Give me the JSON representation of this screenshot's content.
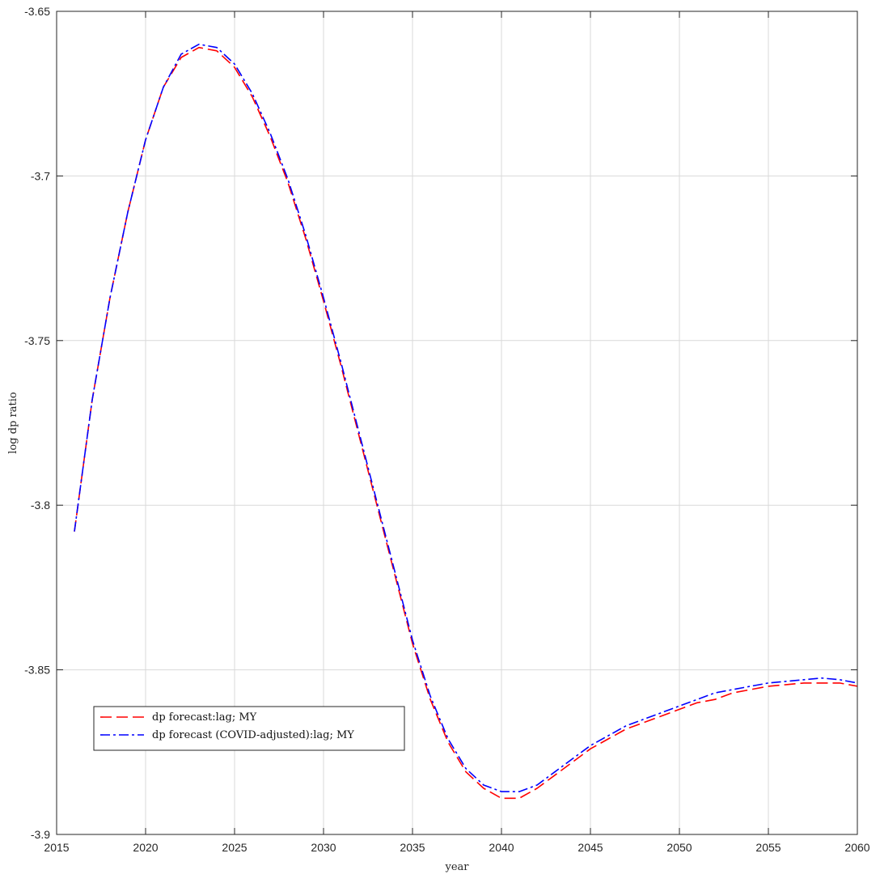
{
  "chart_data": {
    "type": "line",
    "xlabel": "year",
    "ylabel": "log dp ratio",
    "xlim": [
      2015,
      2060
    ],
    "ylim": [
      -3.9,
      -3.65
    ],
    "xticks": [
      2015,
      2020,
      2025,
      2030,
      2035,
      2040,
      2045,
      2050,
      2055,
      2060
    ],
    "yticks": [
      -3.65,
      -3.7,
      -3.75,
      -3.8,
      -3.85,
      -3.9
    ],
    "ytick_labels": [
      "-3.65",
      "-3.7",
      "-3.75",
      "-3.8",
      "-3.85",
      "-3.9"
    ],
    "grid": true,
    "legend_position": "bottom-left",
    "x": [
      2016,
      2017,
      2018,
      2019,
      2020,
      2021,
      2022,
      2023,
      2024,
      2025,
      2026,
      2027,
      2028,
      2029,
      2030,
      2031,
      2032,
      2033,
      2034,
      2035,
      2036,
      2037,
      2038,
      2039,
      2040,
      2041,
      2042,
      2043,
      2044,
      2045,
      2046,
      2047,
      2048,
      2049,
      2050,
      2051,
      2052,
      2053,
      2054,
      2055,
      2056,
      2057,
      2058,
      2059,
      2060
    ],
    "series": [
      {
        "name": "dp forecast:lag; MY",
        "color": "#ff0000",
        "dash": "dashed",
        "values": [
          -3.808,
          -3.768,
          -3.737,
          -3.711,
          -3.689,
          -3.673,
          -3.664,
          -3.661,
          -3.662,
          -3.667,
          -3.676,
          -3.688,
          -3.702,
          -3.719,
          -3.738,
          -3.758,
          -3.779,
          -3.8,
          -3.821,
          -3.842,
          -3.859,
          -3.872,
          -3.881,
          -3.886,
          -3.889,
          -3.889,
          -3.886,
          -3.882,
          -3.878,
          -3.874,
          -3.871,
          -3.868,
          -3.866,
          -3.864,
          -3.862,
          -3.86,
          -3.859,
          -3.857,
          -3.856,
          -3.855,
          -3.8545,
          -3.854,
          -3.854,
          -3.854,
          -3.855
        ]
      },
      {
        "name": "dp forecast (COVID-adjusted):lag; MY",
        "color": "#0000ff",
        "dash": "dashdot",
        "values": [
          -3.808,
          -3.768,
          -3.737,
          -3.711,
          -3.689,
          -3.673,
          -3.663,
          -3.66,
          -3.661,
          -3.666,
          -3.675,
          -3.687,
          -3.701,
          -3.718,
          -3.737,
          -3.757,
          -3.778,
          -3.799,
          -3.82,
          -3.841,
          -3.858,
          -3.871,
          -3.88,
          -3.885,
          -3.887,
          -3.887,
          -3.885,
          -3.881,
          -3.877,
          -3.873,
          -3.87,
          -3.867,
          -3.865,
          -3.863,
          -3.861,
          -3.859,
          -3.857,
          -3.856,
          -3.855,
          -3.854,
          -3.8535,
          -3.853,
          -3.8525,
          -3.853,
          -3.854
        ]
      }
    ]
  }
}
